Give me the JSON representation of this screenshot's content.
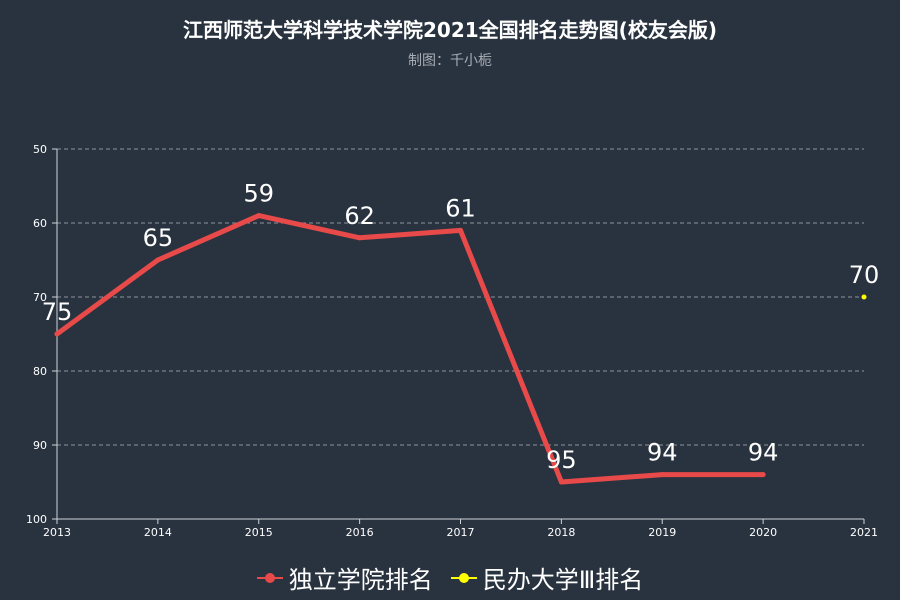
{
  "title": "江西师范大学科学技术学院2021全国排名走势图(校友会版)",
  "subtitle": "制图：千小栀",
  "chart_data": {
    "type": "line",
    "categories": [
      "2013",
      "2014",
      "2015",
      "2016",
      "2017",
      "2018",
      "2019",
      "2020",
      "2021"
    ],
    "y_ticks": [
      50,
      60,
      70,
      80,
      90,
      100
    ],
    "ylim": [
      50,
      100
    ],
    "y_inverted": true,
    "grid": true,
    "legend_position": "bottom",
    "series": [
      {
        "name": "独立学院排名",
        "color": "#e84a4a",
        "values": [
          75,
          65,
          59,
          62,
          61,
          95,
          94,
          94,
          null
        ]
      },
      {
        "name": "民办大学Ⅲ排名",
        "color": "#ffff00",
        "values": [
          null,
          null,
          null,
          null,
          null,
          null,
          null,
          null,
          70
        ]
      }
    ]
  }
}
